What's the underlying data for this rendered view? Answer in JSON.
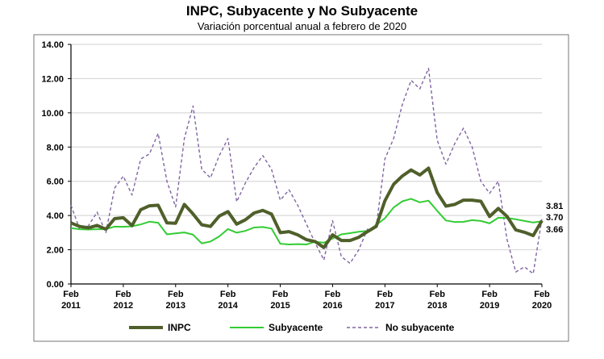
{
  "chart_data": {
    "type": "line",
    "title": "INPC, Subyacente y No Subyacente",
    "subtitle": "Variación porcentual anual a febrero de 2020",
    "xlabel": "",
    "ylabel": "",
    "ylim": [
      0,
      14
    ],
    "yticks": [
      "0.00",
      "2.00",
      "4.00",
      "6.00",
      "8.00",
      "10.00",
      "12.00",
      "14.00"
    ],
    "xticks": [
      {
        "month": "Feb",
        "year": "2011"
      },
      {
        "month": "Feb",
        "year": "2012"
      },
      {
        "month": "Feb",
        "year": "2013"
      },
      {
        "month": "Feb",
        "year": "2014"
      },
      {
        "month": "Feb",
        "year": "2015"
      },
      {
        "month": "Feb",
        "year": "2016"
      },
      {
        "month": "Feb",
        "year": "2017"
      },
      {
        "month": "Feb",
        "year": "2018"
      },
      {
        "month": "Feb",
        "year": "2019"
      },
      {
        "month": "Feb",
        "year": "2020"
      }
    ],
    "grid": true,
    "legend_position": "bottom",
    "x": [
      "2011-02",
      "2011-04",
      "2011-06",
      "2011-08",
      "2011-10",
      "2011-12",
      "2012-02",
      "2012-04",
      "2012-06",
      "2012-08",
      "2012-10",
      "2012-12",
      "2013-02",
      "2013-04",
      "2013-06",
      "2013-08",
      "2013-10",
      "2013-12",
      "2014-02",
      "2014-04",
      "2014-06",
      "2014-08",
      "2014-10",
      "2014-12",
      "2015-02",
      "2015-04",
      "2015-06",
      "2015-08",
      "2015-10",
      "2015-12",
      "2016-02",
      "2016-04",
      "2016-06",
      "2016-08",
      "2016-10",
      "2016-12",
      "2017-02",
      "2017-04",
      "2017-06",
      "2017-08",
      "2017-10",
      "2017-12",
      "2018-02",
      "2018-04",
      "2018-06",
      "2018-08",
      "2018-10",
      "2018-12",
      "2019-02",
      "2019-04",
      "2019-06",
      "2019-08",
      "2019-10",
      "2019-12",
      "2020-02"
    ],
    "series": [
      {
        "name": "INPC",
        "color": "#4f5f2a",
        "style": "solid-thick",
        "end_label": "3.70",
        "values": [
          3.57,
          3.36,
          3.28,
          3.42,
          3.2,
          3.82,
          3.87,
          3.41,
          4.34,
          4.57,
          4.6,
          3.57,
          3.55,
          4.65,
          4.09,
          3.46,
          3.36,
          3.97,
          4.23,
          3.5,
          3.75,
          4.15,
          4.3,
          4.08,
          3.0,
          3.06,
          2.87,
          2.59,
          2.48,
          2.13,
          2.87,
          2.54,
          2.54,
          2.73,
          3.06,
          3.36,
          4.86,
          5.82,
          6.31,
          6.66,
          6.37,
          6.77,
          5.34,
          4.55,
          4.65,
          4.9,
          4.9,
          4.83,
          3.94,
          4.41,
          3.95,
          3.16,
          3.02,
          2.83,
          3.7
        ]
      },
      {
        "name": "Subyacente",
        "color": "#33cc33",
        "style": "solid",
        "end_label": "3.66",
        "values": [
          3.26,
          3.2,
          3.18,
          3.2,
          3.2,
          3.35,
          3.34,
          3.37,
          3.48,
          3.64,
          3.58,
          2.9,
          2.96,
          3.01,
          2.88,
          2.37,
          2.48,
          2.78,
          3.21,
          3.0,
          3.1,
          3.3,
          3.33,
          3.24,
          2.35,
          2.31,
          2.33,
          2.31,
          2.47,
          2.41,
          2.66,
          2.9,
          2.97,
          3.05,
          3.1,
          3.44,
          3.84,
          4.47,
          4.83,
          4.98,
          4.77,
          4.87,
          4.27,
          3.71,
          3.62,
          3.63,
          3.73,
          3.68,
          3.54,
          3.87,
          3.85,
          3.78,
          3.68,
          3.59,
          3.66
        ]
      },
      {
        "name": "No subyacente",
        "color": "#8064a2",
        "style": "dashed",
        "end_label": "3.81",
        "values": [
          4.6,
          3.2,
          3.4,
          4.2,
          3.0,
          5.6,
          6.3,
          5.2,
          7.3,
          7.6,
          8.8,
          6.0,
          4.5,
          8.5,
          10.4,
          6.7,
          6.2,
          7.5,
          8.5,
          4.8,
          5.9,
          6.8,
          7.5,
          6.7,
          4.9,
          5.5,
          4.6,
          3.5,
          2.4,
          1.4,
          3.7,
          1.6,
          1.2,
          2.0,
          3.2,
          3.3,
          7.3,
          8.5,
          10.5,
          11.9,
          11.4,
          12.6,
          8.4,
          7.0,
          8.2,
          9.1,
          8.0,
          6.0,
          5.3,
          6.0,
          2.6,
          0.7,
          1.0,
          0.6,
          3.81
        ]
      }
    ]
  }
}
